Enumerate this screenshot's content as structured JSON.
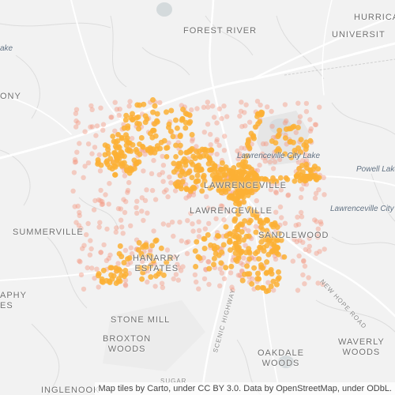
{
  "map": {
    "places": {
      "forest_river": "FOREST RIVER",
      "hurrican": "HURRICAN",
      "universit": "UNIVERSIT",
      "ony": "ONY",
      "summerville": "SUMMERVILLE",
      "hanarry_line1": "HANARRY",
      "hanarry_line2": "ESTATES",
      "lawrenceville_upper": "LAWRENCEVILLE",
      "lawrenceville_lower": "LAWRENCEVILLE",
      "sandlewood": "SANDLEWOOD",
      "stone_mill": "STONE MILL",
      "broxton_line1": "BROXTON",
      "broxton_line2": "WOODS",
      "oakdale_line1": "OAKDALE",
      "oakdale_line2": "WOODS",
      "waverly_line1": "WAVERLY",
      "waverly_line2": "WOODS",
      "aphy_line1": "APHY",
      "aphy_line2": "ES",
      "inglenook": "INGLENOOK"
    },
    "water": {
      "lawrenceville_city_lake": "Lawrenceville City Lake",
      "powell_lake": "Powell Lake",
      "lawrenceville_city": "Lawrenceville City",
      "lake_partial": "ake"
    },
    "roads": {
      "new_hope_road": "NEW HOPE ROAD",
      "scenic_highway": "SCENIC HIGHWAY",
      "sugar": "SUGAR"
    },
    "attribution": "Map tiles by Carto, under CC BY 3.0. Data by OpenStreetMap, under ODbL.",
    "colors": {
      "land": "#f2f2f2",
      "road_major": "#ffffff",
      "road_minor": "#dedede",
      "park": "#e6e6e6",
      "lake": "#d4dadc",
      "point_orange": "#fbb035",
      "point_salmon": "#f59b85"
    }
  }
}
